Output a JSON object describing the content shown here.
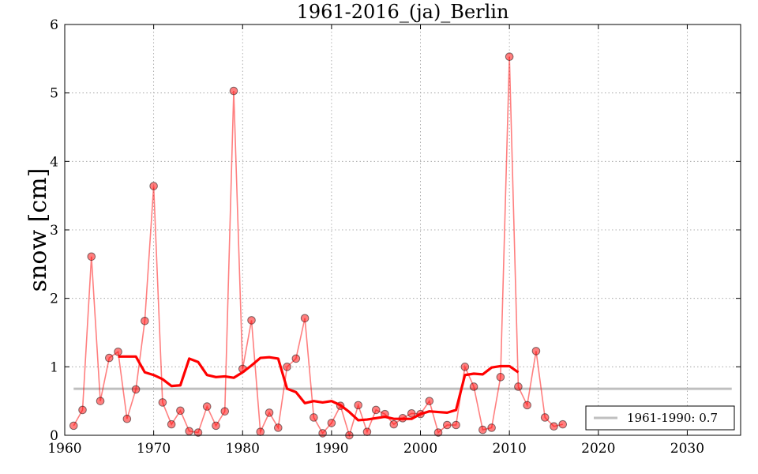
{
  "chart_data": {
    "type": "line",
    "title": "1961-2016_(ja)_Berlin",
    "xlabel": "",
    "ylabel": "snow [cm]",
    "xlim": [
      1960,
      2036
    ],
    "ylim": [
      0,
      6
    ],
    "x_ticks": [
      "1960",
      "1970",
      "1980",
      "1990",
      "2000",
      "2010",
      "2020",
      "2030"
    ],
    "y_ticks": [
      "0",
      "1",
      "2",
      "3",
      "4",
      "5",
      "6"
    ],
    "grid": true,
    "legend_position": "bottom-right",
    "series": [
      {
        "kind": "markers-line",
        "color": "#ff0000",
        "x": [
          1961,
          1962,
          1963,
          1964,
          1965,
          1966,
          1967,
          1968,
          1969,
          1970,
          1971,
          1972,
          1973,
          1974,
          1975,
          1976,
          1977,
          1978,
          1979,
          1980,
          1981,
          1982,
          1983,
          1984,
          1985,
          1986,
          1987,
          1988,
          1989,
          1990,
          1991,
          1992,
          1993,
          1994,
          1995,
          1996,
          1997,
          1998,
          1999,
          2000,
          2001,
          2002,
          2003,
          2004,
          2005,
          2006,
          2007,
          2008,
          2009,
          2010,
          2011,
          2012,
          2013,
          2014,
          2015,
          2016
        ],
        "values": [
          0.14,
          0.37,
          2.61,
          0.5,
          1.13,
          1.22,
          0.24,
          0.67,
          1.67,
          3.64,
          0.48,
          0.16,
          0.36,
          0.06,
          0.04,
          0.42,
          0.14,
          0.35,
          5.03,
          0.97,
          1.68,
          0.05,
          0.33,
          0.11,
          1.0,
          1.12,
          1.71,
          0.26,
          0.03,
          0.18,
          0.43,
          0.0,
          0.44,
          0.05,
          0.37,
          0.31,
          0.16,
          0.25,
          0.32,
          0.31,
          0.5,
          0.04,
          0.15,
          0.15,
          1.0,
          0.71,
          0.08,
          0.11,
          0.85,
          5.53,
          0.71,
          0.44,
          1.23,
          0.26,
          0.13,
          0.16
        ]
      },
      {
        "kind": "moving-average",
        "color": "#ff0000",
        "x": [
          1966,
          1967,
          1968,
          1969,
          1970,
          1971,
          1972,
          1973,
          1974,
          1975,
          1976,
          1977,
          1978,
          1979,
          1980,
          1981,
          1982,
          1983,
          1984,
          1985,
          1986,
          1987,
          1988,
          1989,
          1990,
          1991,
          1992,
          1993,
          1994,
          1995,
          1996,
          1997,
          1998,
          1999,
          2000,
          2001,
          2002,
          2003,
          2004,
          2005,
          2006,
          2007,
          2008,
          2009,
          2010,
          2011
        ],
        "values": [
          1.15,
          1.15,
          1.15,
          0.92,
          0.88,
          0.82,
          0.72,
          0.73,
          1.12,
          1.07,
          0.88,
          0.85,
          0.86,
          0.84,
          0.92,
          1.02,
          1.13,
          1.14,
          1.12,
          0.68,
          0.63,
          0.47,
          0.5,
          0.48,
          0.5,
          0.44,
          0.34,
          0.22,
          0.23,
          0.25,
          0.27,
          0.24,
          0.24,
          0.24,
          0.31,
          0.35,
          0.34,
          0.33,
          0.37,
          0.88,
          0.9,
          0.89,
          0.99,
          1.01,
          1.01,
          0.92
        ]
      },
      {
        "kind": "reference",
        "name": "1961-1990: 0.7",
        "color": "#bfbfbf",
        "value": 0.68
      }
    ]
  }
}
